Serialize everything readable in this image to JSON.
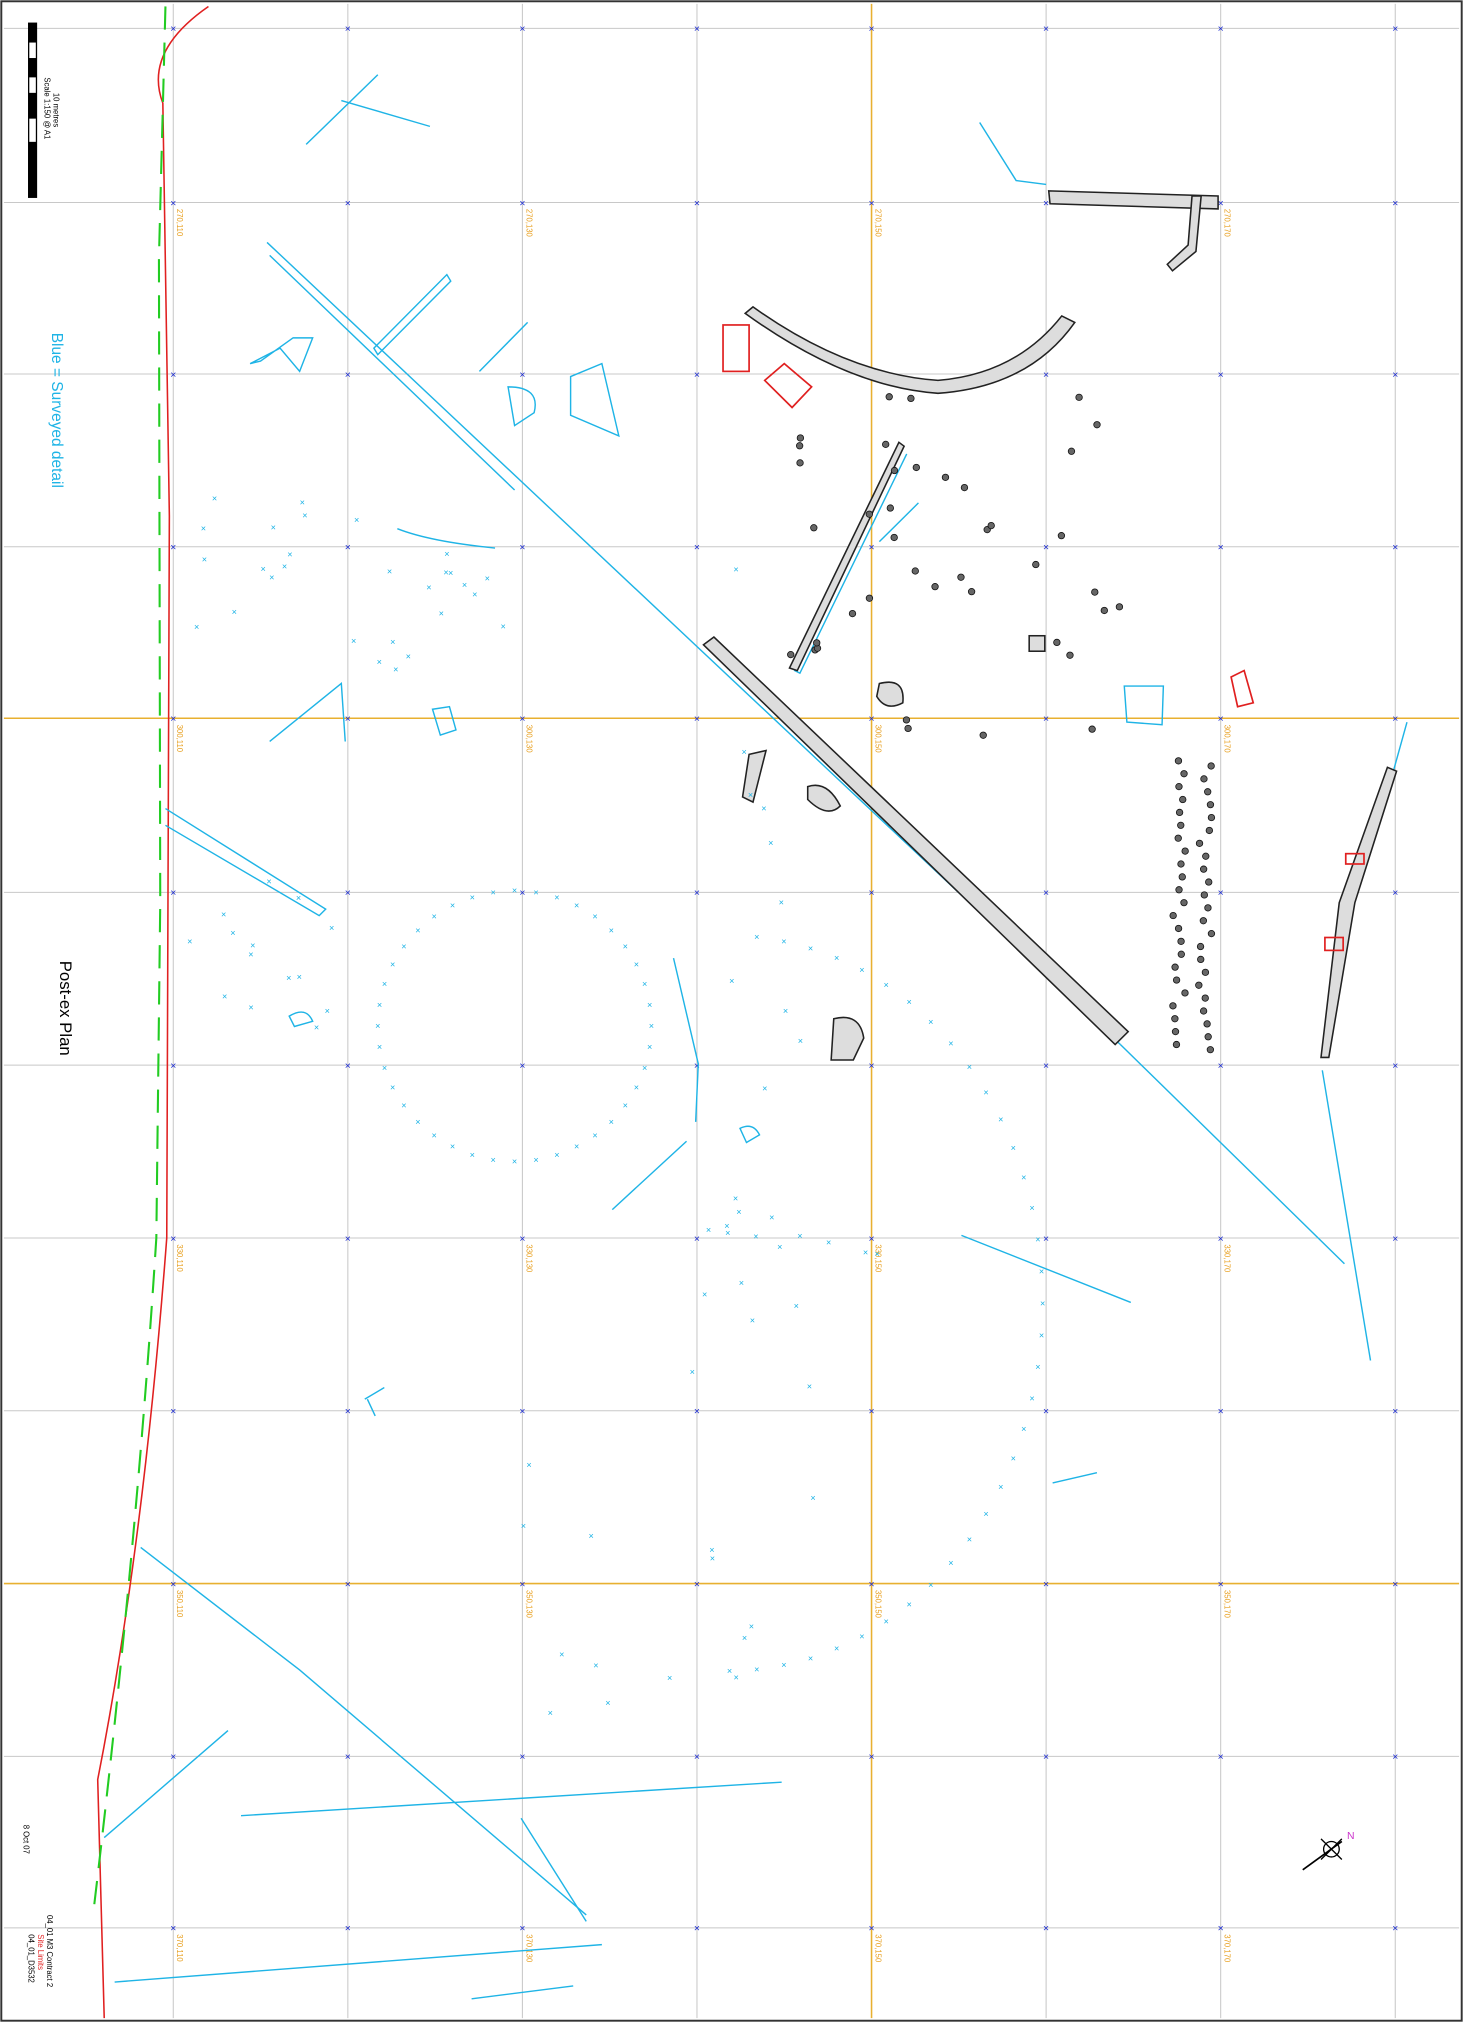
{
  "sheet": {
    "scale": "Scale 1:150 @ A1",
    "scale_bar": "10 metres",
    "legend": "Blue = Surveyed detail",
    "title": "Post-ex Plan",
    "date": "8 Oct 07",
    "project": "04_01 M3 Contract 2",
    "limits": "Site Limits",
    "drawing_no": "04_01_D3532"
  },
  "grid_labels": [
    [
      "270,110",
      "270,130",
      "270,150",
      "270,170"
    ],
    [
      "300,110",
      "300,130",
      "300,150",
      "300,170"
    ],
    [
      "330,110",
      "330,130",
      "330,150",
      "330,170"
    ],
    [
      "350,110",
      "350,130",
      "350,150",
      "350,170"
    ],
    [
      "370,110",
      "370,130",
      "370,150",
      "370,170"
    ]
  ]
}
